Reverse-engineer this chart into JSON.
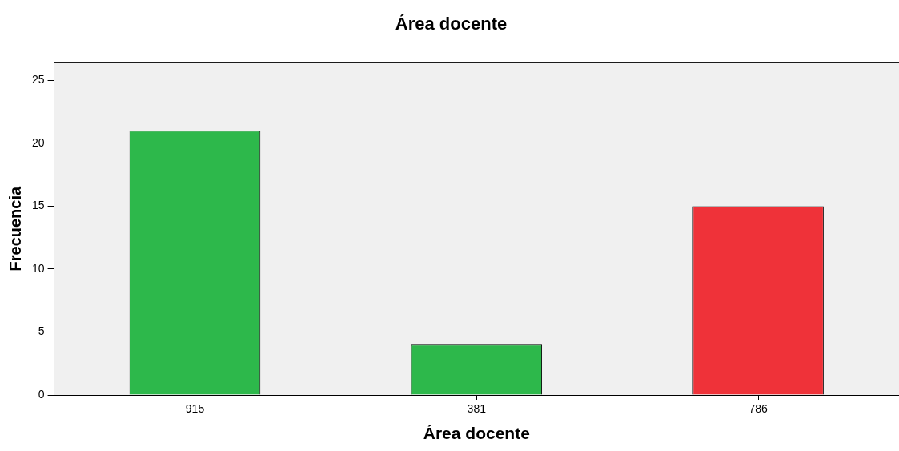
{
  "chart_data": {
    "type": "bar",
    "title": "Área docente",
    "xlabel": "Área docente",
    "ylabel": "Frecuencia",
    "categories": [
      "915",
      "381",
      "786"
    ],
    "values": [
      21,
      4,
      15
    ],
    "colors": [
      "#2db84b",
      "#2db84b",
      "#ef3239"
    ],
    "ylim": [
      0,
      26.4
    ],
    "yticks": [
      0,
      5,
      10,
      15,
      20,
      25
    ],
    "grid": false,
    "legend": false
  }
}
